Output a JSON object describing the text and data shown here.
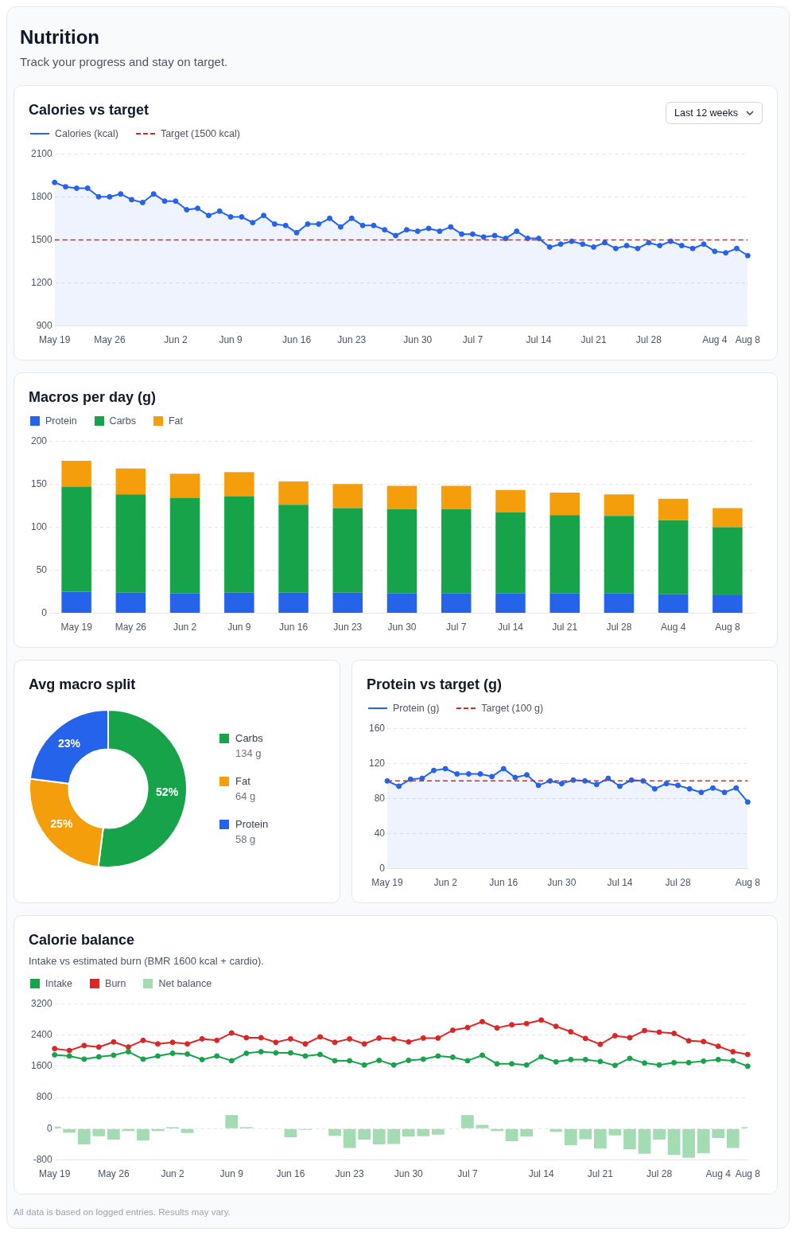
{
  "chart_data": [
    {
      "type": "other",
      "title": "Nutrition",
      "subtitle": "Track your progress and stay on target."
    },
    {
      "type": "line",
      "title": "Calories vs target",
      "annotations": [
        "Last 12 weeks"
      ],
      "legend": "top",
      "marker": "circle",
      "grid": "y",
      "categories": [
        "May 19",
        null,
        null,
        null,
        null,
        "May 26",
        null,
        null,
        null,
        null,
        null,
        "Jun 2",
        null,
        null,
        null,
        null,
        "Jun 9",
        null,
        null,
        null,
        null,
        null,
        "Jun 16",
        null,
        null,
        null,
        null,
        "Jun 23",
        null,
        null,
        null,
        null,
        null,
        "Jun 30",
        null,
        null,
        null,
        null,
        "Jul 7",
        null,
        null,
        null,
        null,
        null,
        "Jul 14",
        null,
        null,
        null,
        null,
        "Jul 21",
        null,
        null,
        null,
        null,
        "Jul 28",
        null,
        null,
        null,
        null,
        null,
        "Aug 4",
        null,
        null,
        "Aug 8"
      ],
      "series": [
        {
          "name": "Calories (kcal)",
          "type": "area",
          "color": "#2563eb",
          "values": [
            1900,
            1870,
            1860,
            1860,
            1800,
            1800,
            1820,
            1780,
            1760,
            1820,
            1770,
            1770,
            1710,
            1720,
            1670,
            1700,
            1660,
            1660,
            1620,
            1670,
            1610,
            1600,
            1550,
            1610,
            1610,
            1650,
            1590,
            1650,
            1600,
            1600,
            1570,
            1530,
            1570,
            1560,
            1580,
            1560,
            1590,
            1540,
            1540,
            1520,
            1530,
            1510,
            1560,
            1510,
            1510,
            1450,
            1470,
            1490,
            1470,
            1450,
            1480,
            1440,
            1460,
            1440,
            1480,
            1460,
            1490,
            1460,
            1440,
            1470,
            1420,
            1410,
            1440,
            1390
          ]
        }
      ],
      "ref_lines": [
        {
          "axis": "y",
          "value": 1500,
          "label": "Target (1500 kcal)",
          "color": "#dc2626",
          "line_style": "dashed"
        }
      ],
      "ylim": [
        900,
        2100
      ],
      "yticks": [
        900,
        1200,
        1500,
        1800,
        2100
      ]
    },
    {
      "type": "bar",
      "title": "Macros per day (g)",
      "stacked": true,
      "legend": "top",
      "grid": "y",
      "categories": [
        "May 19",
        "May 26",
        "Jun 2",
        "Jun 9",
        "Jun 16",
        "Jun 23",
        "Jun 30",
        "Jul 7",
        "Jul 14",
        "Jul 21",
        "Jul 28",
        "Aug 4",
        "Aug 8"
      ],
      "series": [
        {
          "name": "Protein",
          "color": "#2563eb",
          "values": [
            25,
            24,
            23,
            24,
            24,
            24,
            23,
            23,
            23,
            23,
            23,
            22,
            21
          ]
        },
        {
          "name": "Carbs",
          "color": "#16a34a",
          "values": [
            122,
            114,
            111,
            112,
            102,
            98,
            98,
            98,
            94,
            91,
            90,
            86,
            79
          ]
        },
        {
          "name": "Fat",
          "color": "#f59e0b",
          "values": [
            30,
            30,
            28,
            28,
            27,
            28,
            27,
            27,
            26,
            26,
            25,
            25,
            22
          ]
        }
      ],
      "ylim": [
        0,
        200
      ],
      "yticks": [
        0,
        50,
        100,
        150,
        200
      ]
    },
    {
      "type": "donut",
      "title": "Avg macro split",
      "legend": "right",
      "categories": [
        "Carbs",
        "Fat",
        "Protein"
      ],
      "values": [
        52,
        25,
        23
      ],
      "colors": [
        "#16a34a",
        "#f59e0b",
        "#2563eb"
      ],
      "value_labels": [
        "52%",
        "25%",
        "23%"
      ],
      "annotations": [
        "134 g",
        "64 g",
        "58 g"
      ]
    },
    {
      "type": "line",
      "title": "Protein vs target (g)",
      "legend": "top",
      "marker": "circle",
      "grid": "y",
      "categories": [
        "May 19",
        null,
        null,
        null,
        null,
        "Jun 2",
        null,
        null,
        null,
        null,
        "Jun 16",
        null,
        null,
        null,
        null,
        "Jun 30",
        null,
        null,
        null,
        null,
        "Jul 14",
        null,
        null,
        null,
        null,
        "Jul 28",
        null,
        null,
        null,
        null,
        null,
        "Aug 8"
      ],
      "series": [
        {
          "name": "Protein (g)",
          "type": "area",
          "color": "#2563eb",
          "values": [
            100,
            94,
            102,
            103,
            112,
            114,
            108,
            108,
            108,
            105,
            114,
            104,
            107,
            95,
            100,
            97,
            101,
            100,
            96,
            103,
            94,
            101,
            100,
            91,
            97,
            95,
            91,
            87,
            92,
            87,
            92,
            76
          ]
        }
      ],
      "ref_lines": [
        {
          "axis": "y",
          "value": 100,
          "label": "Target (100 g)",
          "color": "#dc2626",
          "line_style": "dashed"
        }
      ],
      "ylim": [
        0,
        160
      ],
      "yticks": [
        0,
        40,
        80,
        120,
        160
      ]
    },
    {
      "type": "line",
      "title": "Calorie balance",
      "subtitle": "Intake vs estimated burn (BMR 1600 kcal + cardio).",
      "legend": "top",
      "marker": "circle",
      "grid": "y",
      "annotations": [
        "All data is based on logged entries. Results may vary."
      ],
      "categories": [
        "May 19",
        null,
        null,
        null,
        "May 26",
        null,
        null,
        null,
        "Jun 2",
        null,
        null,
        null,
        "Jun 9",
        null,
        null,
        null,
        "Jun 16",
        null,
        null,
        null,
        "Jun 23",
        null,
        null,
        null,
        "Jun 30",
        null,
        null,
        null,
        "Jul 7",
        null,
        null,
        null,
        null,
        "Jul 14",
        null,
        null,
        null,
        "Jul 21",
        null,
        null,
        null,
        "Jul 28",
        null,
        null,
        null,
        "Aug 4",
        null,
        "Aug 8"
      ],
      "series": [
        {
          "name": "Intake",
          "type": "line",
          "color": "#16a34a",
          "values": [
            1890,
            1860,
            1780,
            1840,
            1880,
            1970,
            1780,
            1860,
            1930,
            1910,
            1770,
            1860,
            1740,
            1930,
            1970,
            1940,
            1940,
            1860,
            1900,
            1740,
            1740,
            1630,
            1750,
            1630,
            1750,
            1780,
            1860,
            1830,
            1740,
            1880,
            1660,
            1660,
            1630,
            1840,
            1710,
            1770,
            1770,
            1720,
            1620,
            1800,
            1680,
            1630,
            1690,
            1690,
            1730,
            1770,
            1740,
            1600
          ]
        },
        {
          "name": "Burn",
          "type": "line",
          "color": "#dc2626",
          "values": [
            2050,
            2000,
            2130,
            2090,
            2220,
            2090,
            2260,
            2170,
            2210,
            2170,
            2300,
            2260,
            2450,
            2330,
            2330,
            2210,
            2300,
            2170,
            2350,
            2210,
            2300,
            2170,
            2320,
            2300,
            2220,
            2320,
            2320,
            2520,
            2590,
            2740,
            2580,
            2660,
            2690,
            2780,
            2620,
            2480,
            2310,
            2160,
            2380,
            2330,
            2510,
            2470,
            2440,
            2250,
            2230,
            2110,
            1970,
            1900
          ]
        },
        {
          "name": "Net balance",
          "type": "bar",
          "color": "#a3dcb2",
          "values": [
            50,
            -100,
            -400,
            -190,
            -280,
            -60,
            -300,
            -60,
            40,
            -110,
            null,
            null,
            350,
            40,
            null,
            0,
            -220,
            -30,
            0,
            -180,
            -490,
            -280,
            -400,
            -390,
            -200,
            -190,
            -150,
            0,
            350,
            100,
            -60,
            -320,
            -200,
            0,
            -80,
            -420,
            -270,
            -510,
            -170,
            -530,
            -640,
            -280,
            -670,
            -740,
            -630,
            -240,
            -490,
            40
          ]
        }
      ],
      "ylim": [
        -800,
        3200
      ],
      "yticks": [
        -800,
        0,
        800,
        1600,
        2400,
        3200
      ]
    }
  ]
}
